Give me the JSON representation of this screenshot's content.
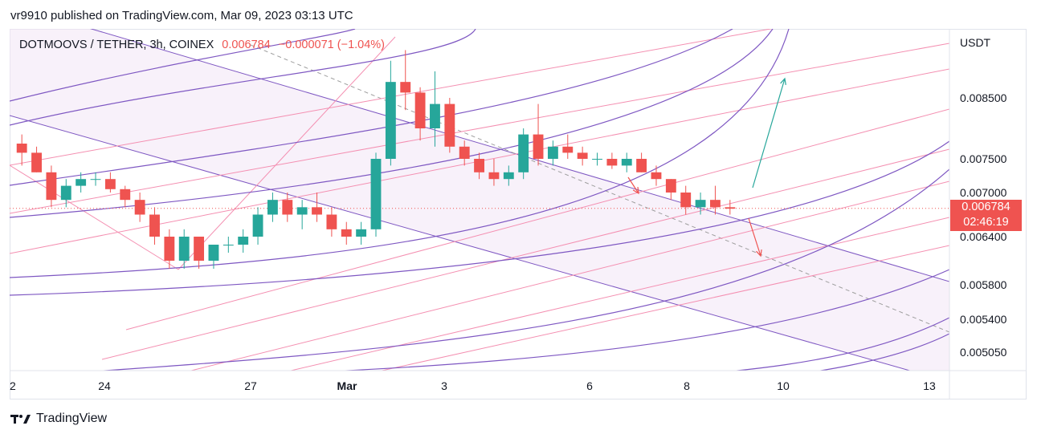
{
  "publisher": "vr9910 published on TradingView.com, Mar 09, 2023 03:13 UTC",
  "legend": {
    "symbol": "DOTMOOVS / TETHER, 3h, COINEX",
    "last": "0.006784",
    "change": "−0.000071 (−1.04%)"
  },
  "last_price_tag": {
    "price": "0.006784",
    "countdown": "02:46:19"
  },
  "brand": "TradingView",
  "colors": {
    "up": "#26a69a",
    "down": "#ef5350",
    "channel": "#7e57c2",
    "fib": "#f48fb1",
    "arrow_down": "#ef5350",
    "arrow_up": "#26a69a"
  },
  "chart_data": {
    "type": "candlestick",
    "title": "DOTMOOVS / TETHER, 3h, COINEX",
    "currency": "USDT",
    "y_ticks": [
      0.0085,
      0.0075,
      0.007,
      0.0064,
      0.0058,
      0.0054,
      0.00505
    ],
    "y_tick_labels": [
      "0.008500",
      "0.007500",
      "0.007000",
      "0.006400",
      "0.005800",
      "0.005400",
      "0.005050"
    ],
    "x_ticks": [
      2,
      24,
      27,
      "Mar",
      3,
      6,
      8,
      10,
      13
    ],
    "x_tick_labels": [
      "2",
      "24",
      "27",
      "Mar",
      "3",
      "6",
      "8",
      "10",
      "13"
    ],
    "ohlc_approx": [
      [
        0.00775,
        0.0079,
        0.0074,
        0.0076
      ],
      [
        0.0076,
        0.0077,
        0.0073,
        0.0073
      ],
      [
        0.0073,
        0.0074,
        0.0068,
        0.0069
      ],
      [
        0.0069,
        0.0072,
        0.0068,
        0.0071
      ],
      [
        0.0071,
        0.0073,
        0.007,
        0.0072
      ],
      [
        0.0072,
        0.0073,
        0.0071,
        0.0072
      ],
      [
        0.0072,
        0.0073,
        0.007,
        0.00705
      ],
      [
        0.00705,
        0.0071,
        0.0068,
        0.0069
      ],
      [
        0.0069,
        0.007,
        0.0066,
        0.0067
      ],
      [
        0.0067,
        0.0068,
        0.0063,
        0.0064
      ],
      [
        0.0064,
        0.0065,
        0.006,
        0.0061
      ],
      [
        0.0061,
        0.0065,
        0.006,
        0.0064
      ],
      [
        0.0064,
        0.0064,
        0.006,
        0.0061
      ],
      [
        0.0061,
        0.0063,
        0.006,
        0.0063
      ],
      [
        0.0063,
        0.0064,
        0.0062,
        0.0063
      ],
      [
        0.0063,
        0.0065,
        0.0062,
        0.0064
      ],
      [
        0.0064,
        0.0068,
        0.0063,
        0.0067
      ],
      [
        0.0067,
        0.007,
        0.0066,
        0.0069
      ],
      [
        0.0069,
        0.007,
        0.0066,
        0.0067
      ],
      [
        0.0067,
        0.0069,
        0.0065,
        0.0068
      ],
      [
        0.0068,
        0.007,
        0.0066,
        0.0067
      ],
      [
        0.0067,
        0.0068,
        0.0064,
        0.0065
      ],
      [
        0.0065,
        0.0066,
        0.0063,
        0.0064
      ],
      [
        0.0064,
        0.0066,
        0.0063,
        0.0065
      ],
      [
        0.0065,
        0.0076,
        0.0064,
        0.0075
      ],
      [
        0.0075,
        0.0092,
        0.0074,
        0.0088
      ],
      [
        0.0088,
        0.0094,
        0.0083,
        0.0086
      ],
      [
        0.0086,
        0.0087,
        0.0078,
        0.008
      ],
      [
        0.008,
        0.009,
        0.0077,
        0.0084
      ],
      [
        0.0084,
        0.0085,
        0.0076,
        0.0077
      ],
      [
        0.0077,
        0.0078,
        0.0074,
        0.0075
      ],
      [
        0.0075,
        0.0076,
        0.0072,
        0.0073
      ],
      [
        0.0073,
        0.0075,
        0.0071,
        0.0072
      ],
      [
        0.0072,
        0.0074,
        0.0071,
        0.0073
      ],
      [
        0.0073,
        0.008,
        0.0072,
        0.0079
      ],
      [
        0.0079,
        0.0084,
        0.0074,
        0.0075
      ],
      [
        0.0075,
        0.0078,
        0.0074,
        0.0077
      ],
      [
        0.0077,
        0.0079,
        0.0075,
        0.0076
      ],
      [
        0.0076,
        0.0077,
        0.0074,
        0.0075
      ],
      [
        0.0075,
        0.0076,
        0.0074,
        0.0075
      ],
      [
        0.0075,
        0.0076,
        0.00735,
        0.0074
      ],
      [
        0.0074,
        0.0076,
        0.0073,
        0.0075
      ],
      [
        0.0075,
        0.0076,
        0.0073,
        0.0073
      ],
      [
        0.0073,
        0.0074,
        0.0071,
        0.0072
      ],
      [
        0.0072,
        0.0072,
        0.0069,
        0.007
      ],
      [
        0.007,
        0.0071,
        0.0067,
        0.0068
      ],
      [
        0.0068,
        0.007,
        0.0067,
        0.0069
      ],
      [
        0.0069,
        0.0071,
        0.0067,
        0.0068
      ],
      [
        0.0068,
        0.0069,
        0.0067,
        0.00678
      ]
    ]
  }
}
